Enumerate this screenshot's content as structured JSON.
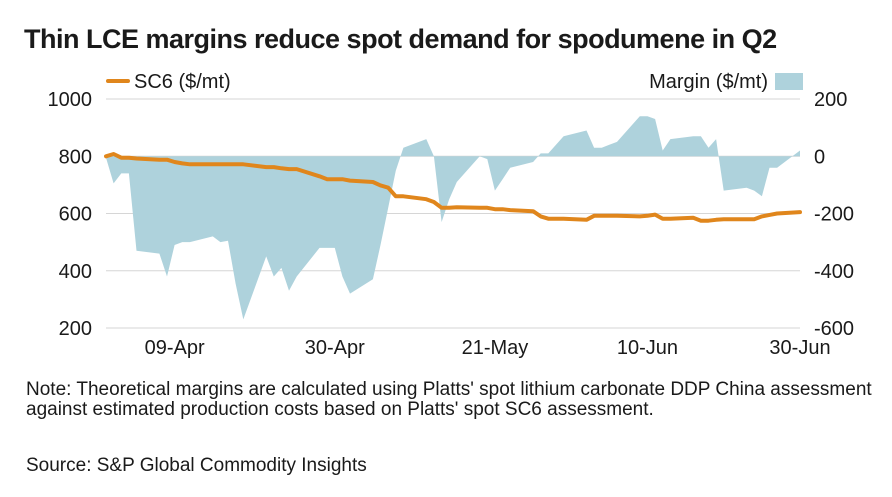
{
  "title": "Thin LCE margins reduce spot demand for spodumene in Q2",
  "note": "Note: Theoretical margins are calculated using Platts' spot lithium carbonate DDP China assessment against estimated production costs based on Platts' spot SC6 assessment.",
  "source": "Source: S&P Global Commodity Insights",
  "colors": {
    "sc6": "#e0861c",
    "margin": "#aed2dc"
  },
  "chart_data": {
    "type": "line",
    "x_dates": [
      "2025-03-31",
      "2025-04-01",
      "2025-04-02",
      "2025-04-03",
      "2025-04-04",
      "2025-04-07",
      "2025-04-08",
      "2025-04-09",
      "2025-04-10",
      "2025-04-11",
      "2025-04-14",
      "2025-04-15",
      "2025-04-16",
      "2025-04-17",
      "2025-04-18",
      "2025-04-21",
      "2025-04-22",
      "2025-04-23",
      "2025-04-24",
      "2025-04-25",
      "2025-04-28",
      "2025-04-29",
      "2025-04-30",
      "2025-05-01",
      "2025-05-02",
      "2025-05-05",
      "2025-05-06",
      "2025-05-07",
      "2025-05-08",
      "2025-05-09",
      "2025-05-12",
      "2025-05-13",
      "2025-05-14",
      "2025-05-15",
      "2025-05-16",
      "2025-05-19",
      "2025-05-20",
      "2025-05-21",
      "2025-05-22",
      "2025-05-23",
      "2025-05-26",
      "2025-05-27",
      "2025-05-28",
      "2025-05-29",
      "2025-05-30",
      "2025-06-02",
      "2025-06-03",
      "2025-06-04",
      "2025-06-05",
      "2025-06-06",
      "2025-06-09",
      "2025-06-10",
      "2025-06-11",
      "2025-06-12",
      "2025-06-13",
      "2025-06-16",
      "2025-06-17",
      "2025-06-18",
      "2025-06-19",
      "2025-06-20",
      "2025-06-23",
      "2025-06-24",
      "2025-06-25",
      "2025-06-26",
      "2025-06-27",
      "2025-06-30"
    ],
    "x_ticks": [
      "09-Apr",
      "30-Apr",
      "21-May",
      "10-Jun",
      "30-Jun"
    ],
    "x_tick_dates": [
      "2025-04-09",
      "2025-04-30",
      "2025-05-21",
      "2025-06-10",
      "2025-06-30"
    ],
    "series": [
      {
        "name": "SC6 ($/mt)",
        "axis": "left",
        "style": "line",
        "values": [
          800,
          808,
          795,
          795,
          792,
          788,
          788,
          780,
          775,
          772,
          772,
          772,
          772,
          772,
          772,
          762,
          762,
          758,
          755,
          755,
          730,
          720,
          720,
          720,
          715,
          710,
          698,
          690,
          660,
          660,
          650,
          640,
          620,
          620,
          622,
          620,
          620,
          615,
          615,
          612,
          608,
          590,
          582,
          582,
          582,
          578,
          592,
          592,
          592,
          592,
          590,
          592,
          596,
          582,
          582,
          585,
          575,
          575,
          578,
          580,
          580,
          580,
          590,
          595,
          600,
          605
        ]
      },
      {
        "name": "Margin ($/mt)",
        "axis": "right",
        "style": "area",
        "values": [
          -5,
          -95,
          -60,
          -60,
          -330,
          -340,
          -420,
          -310,
          -300,
          -300,
          -280,
          -300,
          -295,
          -445,
          -570,
          -350,
          -420,
          -390,
          -470,
          -420,
          -320,
          -320,
          -320,
          -420,
          -480,
          -430,
          -310,
          -180,
          -50,
          30,
          60,
          0,
          -230,
          -150,
          -90,
          0,
          -10,
          -120,
          -80,
          -40,
          -20,
          10,
          10,
          40,
          70,
          90,
          30,
          30,
          40,
          50,
          140,
          140,
          130,
          20,
          60,
          70,
          70,
          30,
          60,
          -120,
          -110,
          -120,
          -140,
          -40,
          -40,
          20
        ]
      }
    ],
    "y_left": {
      "label": "SC6 ($/mt)",
      "range": [
        200,
        1000
      ],
      "ticks": [
        200,
        400,
        600,
        800,
        1000
      ]
    },
    "y_right": {
      "label": "Margin ($/mt)",
      "range": [
        -600,
        200
      ],
      "ticks": [
        -600,
        -400,
        -200,
        0,
        200
      ]
    },
    "grid": "horizontal",
    "legend": "top"
  }
}
